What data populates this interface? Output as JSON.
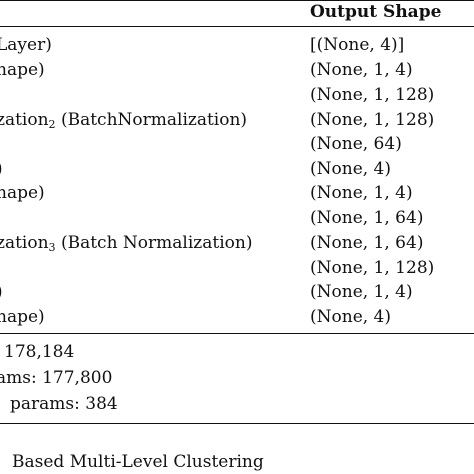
{
  "table": {
    "header": {
      "output_shape": "Output Shape"
    },
    "rows": [
      {
        "layer": "Layer)",
        "shape": "[(None, 4)]"
      },
      {
        "layer": "hape)",
        "shape": "(None, 1, 4)"
      },
      {
        "layer": "",
        "shape": "(None, 1, 128)"
      },
      {
        "layer_main": "zation",
        "layer_sub": "2",
        "layer_tail": " (BatchNormalization)",
        "shape": "(None, 1, 128)"
      },
      {
        "layer": "",
        "shape": "(None, 64)"
      },
      {
        "layer": ")",
        "shape": "(None, 4)"
      },
      {
        "layer": "hape)",
        "shape": "(None, 1, 4)"
      },
      {
        "layer": "",
        "shape": "(None, 1, 64)"
      },
      {
        "layer_main": "zation",
        "layer_sub": "3",
        "layer_tail": " (Batch Normalization)",
        "shape": "(None, 1, 64)"
      },
      {
        "layer": "",
        "shape": "(None, 1, 128)"
      },
      {
        "layer": ")",
        "shape": "(None, 1, 4)"
      },
      {
        "layer": "hape)",
        "shape": "(None, 4)"
      }
    ],
    "summary": {
      "total": "178,184",
      "trainable": "ams: 177,800",
      "non_trainable": "params: 384"
    }
  },
  "caption": "Based Multi-Level Clustering"
}
